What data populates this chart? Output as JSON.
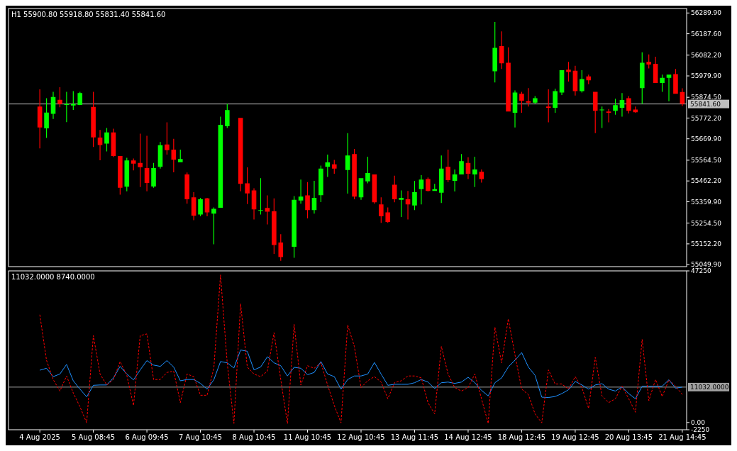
{
  "chart_data": [
    {
      "type": "candlestick",
      "title": "H1  55900.80 55918.80 55831.40 55841.60",
      "ohlc": [
        [
          55829,
          55914,
          55623,
          55726
        ],
        [
          55721,
          55870,
          55674,
          55799
        ],
        [
          55793,
          55901,
          55768,
          55876
        ],
        [
          55862,
          55924,
          55825,
          55841
        ],
        [
          55837,
          55901,
          55752,
          55841
        ],
        [
          55834,
          55905,
          55812,
          55841
        ],
        [
          55837,
          55901,
          55836,
          55895
        ],
        null,
        [
          55827,
          55901,
          55630,
          55677
        ],
        [
          55676,
          55714,
          55564,
          55639
        ],
        [
          55646,
          55723,
          55608,
          55701
        ],
        [
          55701,
          55720,
          55580,
          55585
        ],
        [
          55585,
          55585,
          55395,
          55429
        ],
        [
          55434,
          55576,
          55411,
          55563
        ],
        [
          55563,
          55573,
          55514,
          55548
        ],
        [
          55551,
          55695,
          55432,
          55530
        ],
        [
          55526,
          55685,
          55411,
          55452
        ],
        [
          55435,
          55551,
          55429,
          55526
        ],
        [
          55532,
          55654,
          55523,
          55638
        ],
        [
          55642,
          55751,
          55592,
          55614
        ],
        [
          55617,
          55670,
          55505,
          55567
        ],
        [
          55555,
          55617,
          55555,
          55570
        ],
        [
          55494,
          55504,
          55350,
          55372
        ],
        [
          55382,
          55407,
          55269,
          55291
        ],
        [
          55297,
          55379,
          55288,
          55372
        ],
        [
          55376,
          55379,
          55288,
          55307
        ],
        [
          55301,
          55332,
          55150,
          55325
        ],
        [
          55330,
          55779,
          55330,
          55739
        ],
        [
          55732,
          55842,
          55723,
          55811
        ],
        null,
        [
          55773,
          55773,
          55411,
          55448
        ],
        [
          55451,
          55529,
          55348,
          55401
        ],
        [
          55416,
          55426,
          55272,
          55322
        ],
        [
          55316,
          55476,
          55297,
          55319
        ],
        [
          55329,
          55391,
          55248,
          55311
        ],
        [
          55313,
          55376,
          55103,
          55147
        ],
        [
          55159,
          55200,
          55069,
          55087
        ],
        null,
        [
          55138,
          55388,
          55084,
          55369
        ],
        [
          55366,
          55469,
          55350,
          55385
        ],
        [
          55391,
          55457,
          55278,
          55319
        ],
        [
          55319,
          55463,
          55301,
          55379
        ],
        [
          55392,
          55538,
          55358,
          55523
        ],
        [
          55532,
          55592,
          55482,
          55554
        ],
        [
          55544,
          55566,
          55498,
          55523
        ],
        null,
        [
          55516,
          55698,
          55400,
          55588
        ],
        [
          55595,
          55620,
          55372,
          55385
        ],
        [
          55382,
          55476,
          55369,
          55476
        ],
        [
          55460,
          55582,
          55451,
          55501
        ],
        [
          55494,
          55494,
          55350,
          55357
        ],
        [
          55347,
          55382,
          55256,
          55288
        ],
        [
          55307,
          55332,
          55256,
          55260
        ],
        [
          55444,
          55488,
          55357,
          55372
        ],
        [
          55369,
          55416,
          55285,
          55379
        ],
        [
          55372,
          55413,
          55272,
          55347
        ],
        [
          55341,
          55463,
          55319,
          55407
        ],
        [
          55422,
          55491,
          55347,
          55469
        ],
        [
          55472,
          55479,
          55410,
          55413
        ],
        [
          55413,
          55448,
          55413,
          55422
        ],
        [
          55404,
          55588,
          55354,
          55523
        ],
        [
          55532,
          55617,
          55457,
          55466
        ],
        [
          55463,
          55519,
          55410,
          55494
        ],
        [
          55494,
          55595,
          55494,
          55560
        ],
        [
          55551,
          55579,
          55472,
          55498
        ],
        [
          55494,
          55582,
          55432,
          55519
        ],
        [
          55507,
          55519,
          55454,
          55472
        ],
        null,
        [
          56003,
          56246,
          55948,
          56118
        ],
        [
          56127,
          56199,
          56014,
          56042
        ],
        [
          56045,
          56121,
          55804,
          55804
        ],
        [
          55798,
          55908,
          55726,
          55898
        ],
        [
          55892,
          55901,
          55798,
          55858
        ],
        [
          55855,
          55920,
          55829,
          55848
        ],
        [
          55848,
          55880,
          55842,
          55870
        ],
        null,
        [
          55829,
          55914,
          55751,
          55823
        ],
        [
          55823,
          55917,
          55798,
          55905
        ],
        [
          55898,
          56008,
          55886,
          56008
        ],
        [
          56011,
          56049,
          55952,
          55999
        ],
        [
          56005,
          56030,
          55883,
          55905
        ],
        [
          55905,
          56008,
          55898,
          55964
        ],
        [
          55977,
          55986,
          55939,
          55958
        ],
        [
          55901,
          55901,
          55698,
          55808
        ],
        [
          55811,
          55829,
          55723,
          55814
        ],
        [
          55804,
          55817,
          55751,
          55798
        ],
        [
          55808,
          55867,
          55789,
          55836
        ],
        [
          55823,
          55895,
          55779,
          55861
        ],
        [
          55870,
          55880,
          55795,
          55808
        ],
        [
          55814,
          55829,
          55798,
          55801
        ],
        [
          55920,
          56096,
          55842,
          56045
        ],
        [
          56049,
          56086,
          56017,
          56036
        ],
        [
          56039,
          56074,
          55945,
          55945
        ],
        [
          55945,
          55986,
          55901,
          55970
        ],
        [
          55970,
          55986,
          55855,
          55986
        ],
        [
          55989,
          56014,
          55892,
          55892
        ],
        [
          55900.8,
          55918.8,
          55831.4,
          55841.6
        ]
      ],
      "colors": [
        "#ff0000",
        "#00ff00",
        "#00ff00",
        "#ff0000",
        "#00ff00",
        "#00ff00",
        "#00ff00",
        null,
        "#ff0000",
        "#ff0000",
        "#00ff00",
        "#ff0000",
        "#ff0000",
        "#00ff00",
        "#ff0000",
        "#ff0000",
        "#ff0000",
        "#00ff00",
        "#00ff00",
        "#ff0000",
        "#ff0000",
        "#00ff00",
        "#ff0000",
        "#ff0000",
        "#00ff00",
        "#ff0000",
        "#00ff00",
        "#00ff00",
        "#00ff00",
        null,
        "#ff0000",
        "#ff0000",
        "#ff0000",
        "#00ff00",
        "#ff0000",
        "#ff0000",
        "#ff0000",
        null,
        "#00ff00",
        "#00ff00",
        "#ff0000",
        "#00ff00",
        "#00ff00",
        "#00ff00",
        "#ff0000",
        null,
        "#00ff00",
        "#ff0000",
        "#00ff00",
        "#00ff00",
        "#ff0000",
        "#ff0000",
        "#ff0000",
        "#ff0000",
        "#00ff00",
        "#ff0000",
        "#00ff00",
        "#00ff00",
        "#ff0000",
        "#00ff00",
        "#00ff00",
        "#ff0000",
        "#00ff00",
        "#00ff00",
        "#ff0000",
        "#00ff00",
        "#ff0000",
        null,
        "#00ff00",
        "#ff0000",
        "#ff0000",
        "#00ff00",
        "#ff0000",
        "#ff0000",
        "#00ff00",
        null,
        "#ff0000",
        "#00ff00",
        "#00ff00",
        "#ff0000",
        "#ff0000",
        "#00ff00",
        "#ff0000",
        "#ff0000",
        "#00ff00",
        "#ff0000",
        "#00ff00",
        "#00ff00",
        "#ff0000",
        "#ff0000",
        "#00ff00",
        "#ff0000",
        "#ff0000",
        "#00ff00",
        "#00ff00",
        "#ff0000",
        "#ff0000"
      ],
      "ylim": [
        55040,
        56312
      ],
      "yticks": [
        {
          "value": 56289.9,
          "label": "56289.90"
        },
        {
          "value": 56187.6,
          "label": "56187.60"
        },
        {
          "value": 56082.2,
          "label": "56082.20"
        },
        {
          "value": 55979.9,
          "label": "55979.90"
        },
        {
          "value": 55874.5,
          "label": "55874.50"
        },
        {
          "value": 55772.2,
          "label": "55772.20"
        },
        {
          "value": 55669.9,
          "label": "55669.90"
        },
        {
          "value": 55564.5,
          "label": "55564.50"
        },
        {
          "value": 55462.2,
          "label": "55462.20"
        },
        {
          "value": 55359.9,
          "label": "55359.90"
        },
        {
          "value": 55254.5,
          "label": "55254.50"
        },
        {
          "value": 55152.2,
          "label": "55152.20"
        },
        {
          "value": 55049.9,
          "label": "55049.90"
        }
      ],
      "ref_lines": [
        {
          "axis": "y",
          "value": 55841.6,
          "label": "55841.60",
          "color": "#c0c0c0"
        }
      ],
      "tick_labels": "y"
    },
    {
      "type": "line",
      "title": "11032.0000 8740.0000",
      "categories": [
        "4 Aug 2025",
        null,
        null,
        null,
        null,
        null,
        null,
        null,
        "5 Aug 08:45",
        null,
        null,
        null,
        null,
        null,
        null,
        null,
        "6 Aug 09:45",
        null,
        null,
        null,
        null,
        null,
        null,
        null,
        "7 Aug 10:45",
        null,
        null,
        null,
        null,
        null,
        null,
        null,
        "8 Aug 10:45",
        null,
        null,
        null,
        null,
        null,
        null,
        null,
        "11 Aug 10:45",
        null,
        null,
        null,
        null,
        null,
        null,
        null,
        "12 Aug 10:45",
        null,
        null,
        null,
        null,
        null,
        null,
        null,
        "13 Aug 11:45",
        null,
        null,
        null,
        null,
        null,
        null,
        null,
        "14 Aug 12:45",
        null,
        null,
        null,
        null,
        null,
        null,
        null,
        "18 Aug 12:45",
        null,
        null,
        null,
        null,
        null,
        null,
        null,
        "19 Aug 12:45",
        null,
        null,
        null,
        null,
        null,
        null,
        null,
        "20 Aug 13:45",
        null,
        null,
        null,
        null,
        null,
        null,
        null,
        "21 Aug 14:45"
      ],
      "series": [
        {
          "color": "#1e90ff",
          "line_style": "solid",
          "values": [
            16300,
            16900,
            14300,
            15100,
            18100,
            13000,
            10400,
            8000,
            11600,
            11700,
            11700,
            13900,
            17500,
            15100,
            13300,
            16400,
            19300,
            17900,
            17500,
            19300,
            17300,
            13000,
            13400,
            13400,
            12200,
            10400,
            13300,
            19000,
            18600,
            17000,
            22600,
            22200,
            16400,
            17300,
            20500,
            18600,
            17700,
            14500,
            17200,
            16900,
            14900,
            15600,
            19000,
            15100,
            14300,
            10400,
            13400,
            14500,
            14500,
            15100,
            18700,
            15100,
            11600,
            11900,
            11900,
            11900,
            12400,
            13400,
            12600,
            10600,
            12400,
            12600,
            12200,
            12600,
            14100,
            12400,
            10000,
            8300,
            12400,
            13900,
            17300,
            19400,
            21800,
            17300,
            14700,
            7900,
            7800,
            8100,
            9000,
            10200,
            12800,
            11700,
            10400,
            11700,
            12100,
            10400,
            9800,
            11100,
            9000,
            7400,
            11300,
            11300,
            11300,
            11300,
            13300,
            10700,
            11032
          ]
        },
        {
          "color": "#ff0000",
          "line_style": "dashed",
          "values": [
            33600,
            19400,
            13400,
            9800,
            14500,
            9200,
            4900,
            -100,
            27100,
            15100,
            11700,
            13400,
            19000,
            14700,
            5300,
            27100,
            27600,
            13400,
            13400,
            15600,
            16000,
            6200,
            15100,
            14300,
            8500,
            8500,
            16900,
            46000,
            18600,
            -300,
            37000,
            17300,
            15100,
            14300,
            16000,
            28000,
            13400,
            -300,
            30600,
            11700,
            17700,
            16900,
            18600,
            11700,
            5300,
            -100,
            30400,
            23700,
            10900,
            13000,
            14300,
            12600,
            7400,
            12400,
            13000,
            14500,
            14500,
            13900,
            6200,
            2700,
            23700,
            15100,
            10900,
            9800,
            10900,
            15100,
            7400,
            -300,
            29700,
            18600,
            32300,
            21100,
            10400,
            8700,
            2700,
            -100,
            16400,
            12000,
            12000,
            10400,
            14300,
            10900,
            4400,
            20300,
            8300,
            6200,
            7400,
            11300,
            7400,
            3200,
            25900,
            6800,
            13400,
            8100,
            13300,
            11300,
            8740
          ]
        }
      ],
      "ylim": [
        -2250,
        47250
      ],
      "yticks": [
        47250,
        {
          "value": 0,
          "label": "0.00"
        },
        -2250
      ],
      "ref_lines": [
        {
          "axis": "y",
          "value": 11032,
          "label": "11032.0000",
          "color": "#a0a0a0"
        }
      ]
    }
  ]
}
